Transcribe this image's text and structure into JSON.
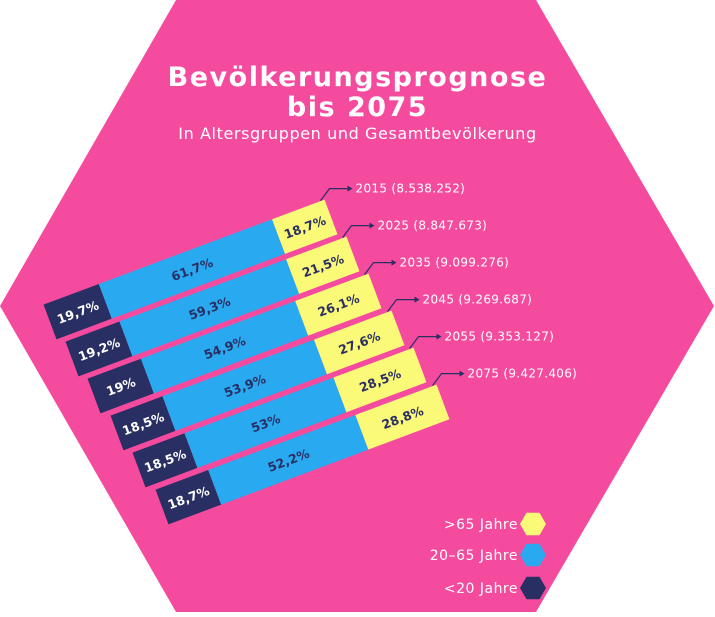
{
  "title_line_1": "Bevölkerungsprognose",
  "title_line_2": "bis 2075",
  "subtitle": "In Altersgruppen und Gesamtbevölkerung",
  "colors": {
    "background": "#f54b9e",
    "under_20": "#2a2f63",
    "age_20_65": "#29aaf0",
    "over_65": "#fbf978",
    "text_light": "#ffffff",
    "text_dark": "#2a2f63"
  },
  "legend": [
    {
      "label": ">65 Jahre",
      "color": "#fbf978"
    },
    {
      "label": "20–65 Jahre",
      "color": "#29aaf0"
    },
    {
      "label": "<20 Jahre",
      "color": "#2a2f63"
    }
  ],
  "chart_data": {
    "type": "bar",
    "stacked": true,
    "categories": [
      "2015 (8.538.252)",
      "2025 (8.847.673)",
      "2035 (9.099.276)",
      "2045 (9.269.687)",
      "2055 (9.353.127)",
      "2075 (9.427.406)"
    ],
    "series": [
      {
        "name": "<20 Jahre",
        "values": [
          19.7,
          19.2,
          19,
          18.5,
          18.5,
          18.7
        ],
        "labels": [
          "19,7%",
          "19,2%",
          "19%",
          "18,5%",
          "18,5%",
          "18,7%"
        ]
      },
      {
        "name": "20–65 Jahre",
        "values": [
          61.7,
          59.3,
          54.9,
          53.9,
          53,
          52.2
        ],
        "labels": [
          "61,7%",
          "59,3%",
          "54,9%",
          "53,9%",
          "53%",
          "52,2%"
        ]
      },
      {
        "name": ">65 Jahre",
        "values": [
          18.7,
          21.5,
          26.1,
          27.6,
          28.5,
          28.8
        ],
        "labels": [
          "18,7%",
          "21,5%",
          "26,1%",
          "27,6%",
          "28,5%",
          "28,8%"
        ]
      }
    ],
    "unit": "%"
  }
}
